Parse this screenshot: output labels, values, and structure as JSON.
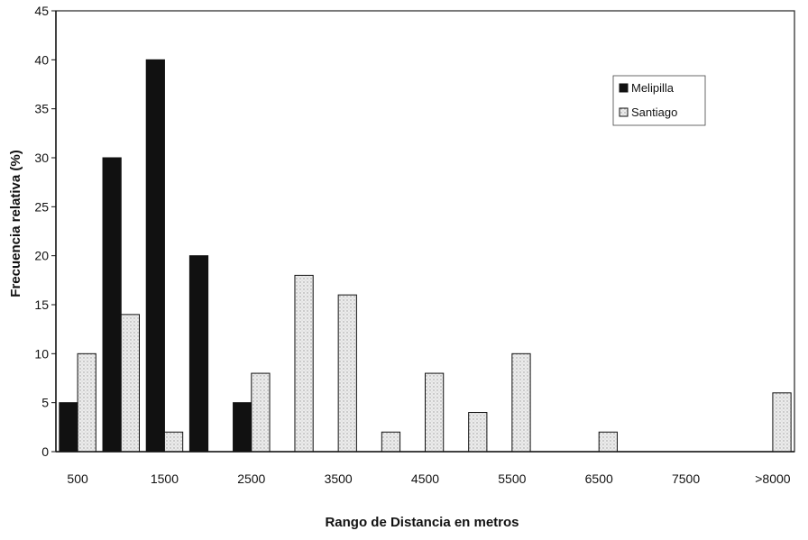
{
  "chart_data": {
    "type": "bar",
    "xlabel": "Rango de Distancia en metros",
    "ylabel": "Frecuencia relativa  (%)",
    "ylim": [
      0,
      45
    ],
    "yticks": [
      "0",
      "5",
      "10",
      "15",
      "20",
      "25",
      "30",
      "35",
      "40",
      "45"
    ],
    "x_tick_labels": [
      "500",
      "1500",
      "2500",
      "3500",
      "4500",
      "5500",
      "6500",
      "7500",
      ">8000"
    ],
    "categories": [
      "500",
      "1000",
      "1500",
      "2000",
      "2500",
      "3000",
      "3500",
      "4000",
      "4500",
      "5000",
      "5500",
      "6000",
      "6500",
      "7000",
      "7500",
      "8000",
      ">8000"
    ],
    "series": [
      {
        "name": "Melipilla",
        "color": "#111111",
        "values": [
          5,
          30,
          40,
          20,
          5,
          0,
          0,
          0,
          0,
          0,
          0,
          0,
          0,
          0,
          0,
          0,
          0
        ]
      },
      {
        "name": "Santiago",
        "color": "#e4e4e4",
        "values": [
          10,
          14,
          2,
          0,
          8,
          18,
          16,
          2,
          8,
          4,
          10,
          0,
          2,
          0,
          0,
          0,
          6
        ]
      }
    ],
    "legend_position": "top-right",
    "grid": false
  }
}
